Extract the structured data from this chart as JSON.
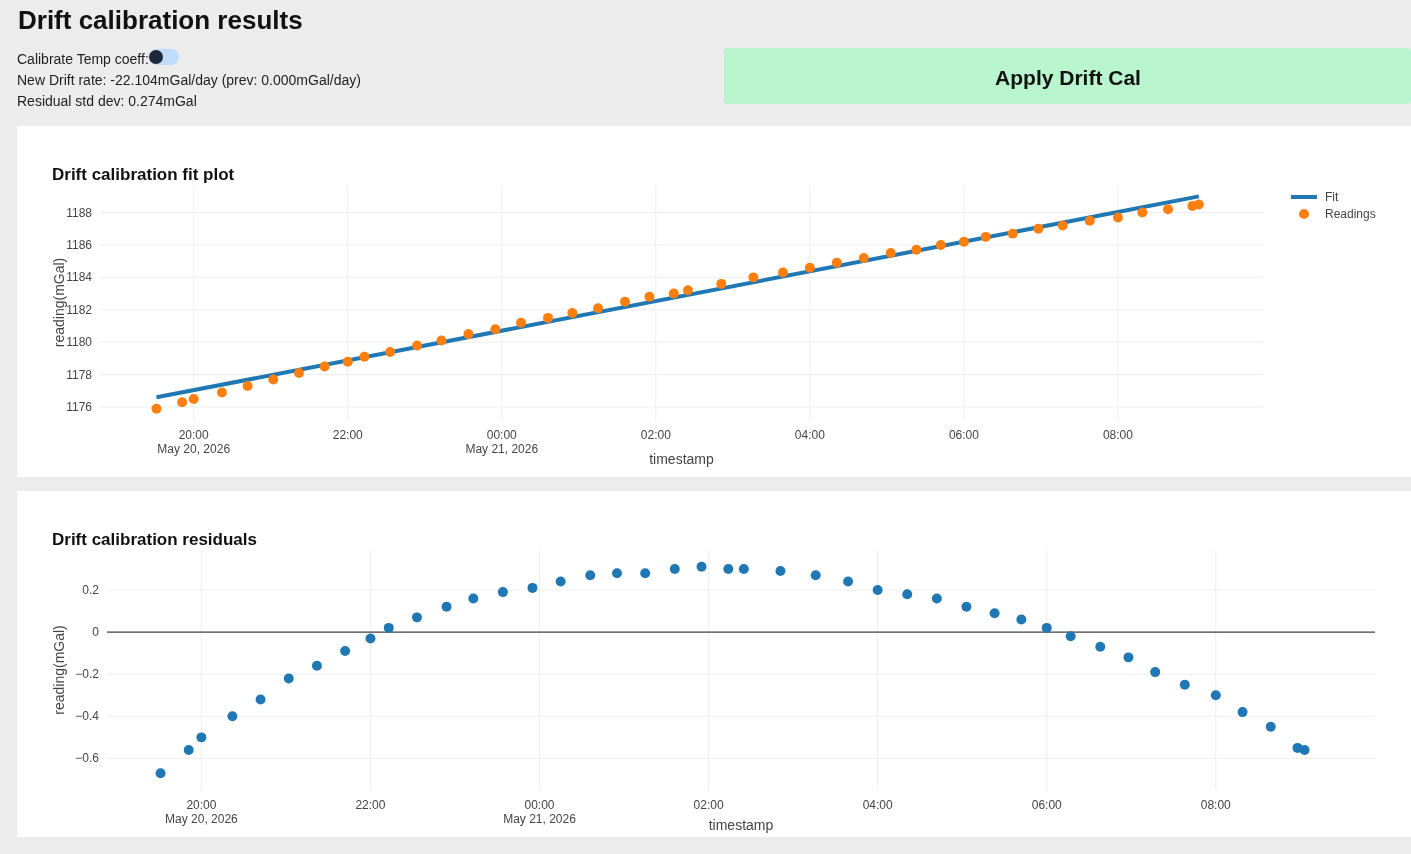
{
  "chart_data": [
    {
      "type": "other",
      "title": "Drift calibration results",
      "annotations": [
        "Calibrate Temp coeff:",
        "New Drift rate: -22.104mGal/day (prev: 0.000mGal/day)",
        "Residual std dev: 0.274mGal",
        "Apply Drift Cal"
      ]
    },
    {
      "type": "line",
      "title": "Drift calibration fit plot",
      "xlabel": "timestamp",
      "ylabel": "reading(mGal)",
      "xlim": [
        "2026-05-20T18:47",
        "2026-05-21T09:53"
      ],
      "ylim": [
        1175.2,
        1189.7
      ],
      "xticks": [
        {
          "value": "2026-05-20T20:00",
          "label": "20:00\nMay 20, 2026"
        },
        {
          "value": "2026-05-20T22:00",
          "label": "22:00"
        },
        {
          "value": "2026-05-21T00:00",
          "label": "00:00\nMay 21, 2026"
        },
        {
          "value": "2026-05-21T02:00",
          "label": "02:00"
        },
        {
          "value": "2026-05-21T04:00",
          "label": "04:00"
        },
        {
          "value": "2026-05-21T06:00",
          "label": "06:00"
        },
        {
          "value": "2026-05-21T08:00",
          "label": "08:00"
        }
      ],
      "yticks": [
        1176,
        1178,
        1180,
        1182,
        1184,
        1186,
        1188
      ],
      "grid": true,
      "legend": "top right",
      "x": [
        "2026-05-20T19:31",
        "2026-05-20T19:51",
        "2026-05-20T20:00",
        "2026-05-20T20:22",
        "2026-05-20T20:42",
        "2026-05-20T21:02",
        "2026-05-20T21:22",
        "2026-05-20T21:42",
        "2026-05-20T22:00",
        "2026-05-20T22:13",
        "2026-05-20T22:33",
        "2026-05-20T22:54",
        "2026-05-20T23:13",
        "2026-05-20T23:34",
        "2026-05-20T23:55",
        "2026-05-21T00:15",
        "2026-05-21T00:36",
        "2026-05-21T00:55",
        "2026-05-21T01:15",
        "2026-05-21T01:36",
        "2026-05-21T01:55",
        "2026-05-21T02:14",
        "2026-05-21T02:25",
        "2026-05-21T02:51",
        "2026-05-21T03:16",
        "2026-05-21T03:39",
        "2026-05-21T04:00",
        "2026-05-21T04:21",
        "2026-05-21T04:42",
        "2026-05-21T05:03",
        "2026-05-21T05:23",
        "2026-05-21T05:42",
        "2026-05-21T06:00",
        "2026-05-21T06:17",
        "2026-05-21T06:38",
        "2026-05-21T06:58",
        "2026-05-21T07:17",
        "2026-05-21T07:38",
        "2026-05-21T08:00",
        "2026-05-21T08:19",
        "2026-05-21T08:39",
        "2026-05-21T08:58",
        "2026-05-21T09:03"
      ],
      "series": [
        {
          "name": "Fit",
          "type": "line",
          "color": "#1f77b4",
          "x": [
            "2026-05-20T19:31",
            "2026-05-21T09:03"
          ],
          "values": [
            1176.6,
            1189.0
          ]
        },
        {
          "name": "Readings",
          "type": "scatter",
          "marker": "circle",
          "color": "#ff7f0e",
          "values": [
            1175.9,
            1176.3,
            1176.5,
            1176.9,
            1177.3,
            1177.7,
            1178.1,
            1178.5,
            1178.8,
            1179.1,
            1179.4,
            1179.8,
            1180.1,
            1180.5,
            1180.8,
            1181.2,
            1181.5,
            1181.8,
            1182.1,
            1182.5,
            1182.8,
            1183.0,
            1183.2,
            1183.6,
            1184.0,
            1184.3,
            1184.6,
            1184.9,
            1185.2,
            1185.5,
            1185.7,
            1186.0,
            1186.2,
            1186.5,
            1186.7,
            1187.0,
            1187.2,
            1187.5,
            1187.7,
            1188.0,
            1188.2,
            1188.4,
            1188.5
          ]
        }
      ]
    },
    {
      "type": "scatter",
      "title": "Drift calibration residuals",
      "xlabel": "timestamp",
      "ylabel": "reading(mGal)",
      "xlim": [
        "2026-05-20T18:53",
        "2026-05-21T09:53"
      ],
      "ylim": [
        -0.75,
        0.39
      ],
      "xticks": [
        {
          "value": "2026-05-20T20:00",
          "label": "20:00\nMay 20, 2026"
        },
        {
          "value": "2026-05-20T22:00",
          "label": "22:00"
        },
        {
          "value": "2026-05-21T00:00",
          "label": "00:00\nMay 21, 2026"
        },
        {
          "value": "2026-05-21T02:00",
          "label": "02:00"
        },
        {
          "value": "2026-05-21T04:00",
          "label": "04:00"
        },
        {
          "value": "2026-05-21T06:00",
          "label": "06:00"
        },
        {
          "value": "2026-05-21T08:00",
          "label": "08:00"
        }
      ],
      "yticks": [
        {
          "value": -0.6,
          "label": "−0.6"
        },
        {
          "value": -0.4,
          "label": "−0.4"
        },
        {
          "value": -0.2,
          "label": "−0.2"
        },
        0,
        0.2
      ],
      "grid": true,
      "marker": "circle",
      "ref_lines": [
        {
          "axis": "y",
          "value": 0,
          "color": "#444444"
        }
      ],
      "x": [
        "2026-05-20T19:31",
        "2026-05-20T19:51",
        "2026-05-20T20:00",
        "2026-05-20T20:22",
        "2026-05-20T20:42",
        "2026-05-20T21:02",
        "2026-05-20T21:22",
        "2026-05-20T21:42",
        "2026-05-20T22:00",
        "2026-05-20T22:13",
        "2026-05-20T22:33",
        "2026-05-20T22:54",
        "2026-05-20T23:13",
        "2026-05-20T23:34",
        "2026-05-20T23:55",
        "2026-05-21T00:15",
        "2026-05-21T00:36",
        "2026-05-21T00:55",
        "2026-05-21T01:15",
        "2026-05-21T01:36",
        "2026-05-21T01:55",
        "2026-05-21T02:14",
        "2026-05-21T02:25",
        "2026-05-21T02:51",
        "2026-05-21T03:16",
        "2026-05-21T03:39",
        "2026-05-21T04:00",
        "2026-05-21T04:21",
        "2026-05-21T04:42",
        "2026-05-21T05:03",
        "2026-05-21T05:23",
        "2026-05-21T05:42",
        "2026-05-21T06:00",
        "2026-05-21T06:17",
        "2026-05-21T06:38",
        "2026-05-21T06:58",
        "2026-05-21T07:17",
        "2026-05-21T07:38",
        "2026-05-21T08:00",
        "2026-05-21T08:19",
        "2026-05-21T08:39",
        "2026-05-21T08:58",
        "2026-05-21T09:03"
      ],
      "series": [
        {
          "color": "#1f77b4",
          "values": [
            -0.67,
            -0.56,
            -0.5,
            -0.4,
            -0.32,
            -0.22,
            -0.16,
            -0.09,
            -0.03,
            0.02,
            0.07,
            0.12,
            0.16,
            0.19,
            0.21,
            0.24,
            0.27,
            0.28,
            0.28,
            0.3,
            0.31,
            0.3,
            0.3,
            0.29,
            0.27,
            0.24,
            0.2,
            0.18,
            0.16,
            0.12,
            0.09,
            0.06,
            0.02,
            -0.02,
            -0.07,
            -0.12,
            -0.19,
            -0.25,
            -0.3,
            -0.38,
            -0.45,
            -0.55,
            -0.56
          ]
        }
      ]
    }
  ]
}
